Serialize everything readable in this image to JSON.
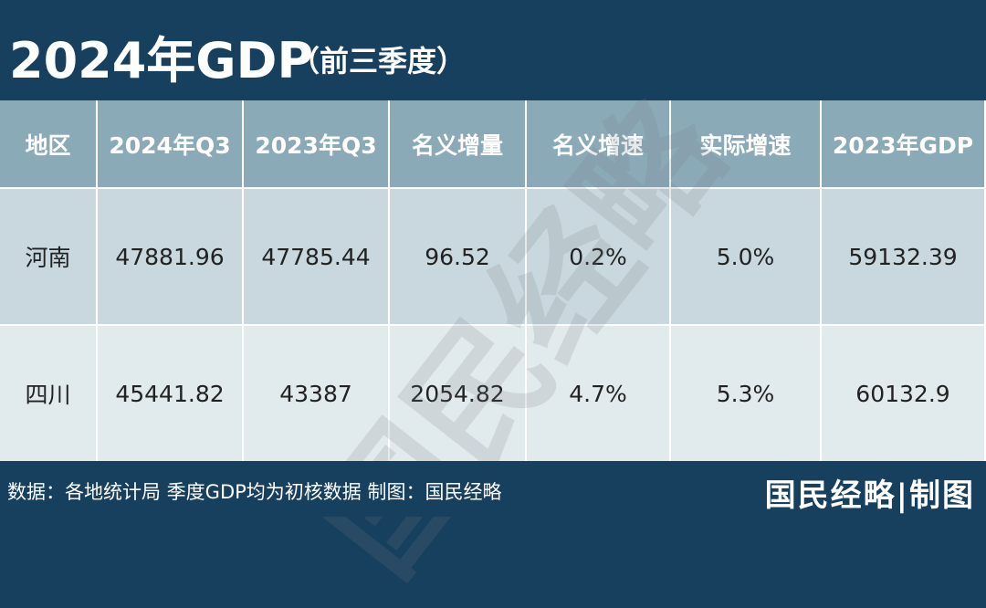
{
  "header": {
    "title": "2024年GDP",
    "subtitle": "（前三季度）"
  },
  "table": {
    "columns": [
      "地区",
      "2024年Q3",
      "2023年Q3",
      "名义增量",
      "名义增速",
      "实际增速",
      "2023年GDP"
    ],
    "rows": [
      [
        "河南",
        "47881.96",
        "47785.44",
        "96.52",
        "0.2%",
        "5.0%",
        "59132.39"
      ],
      [
        "四川",
        "45441.82",
        "43387",
        "2054.82",
        "4.7%",
        "5.3%",
        "60132.9"
      ]
    ]
  },
  "watermark": "国民经略",
  "footer": {
    "source": "数据：各地统计局 季度GDP均为初核数据 制图：国民经略",
    "brand": "国民经略|制图"
  }
}
